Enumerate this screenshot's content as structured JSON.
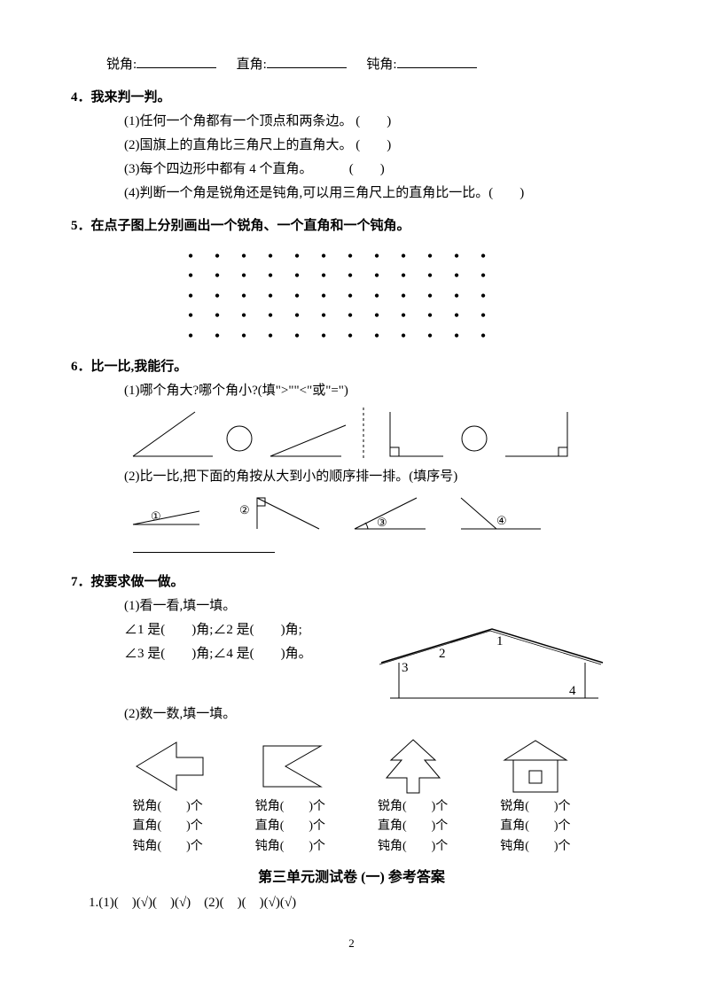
{
  "top": {
    "acute": "锐角:",
    "right": "直角:",
    "obtuse": "钝角:"
  },
  "q4": {
    "title": "4．我来判一判。",
    "items": [
      "(1)任何一个角都有一个顶点和两条边。  (　　)",
      "(2)国旗上的直角比三角尺上的直角大。  (　　)",
      "(3)每个四边形中都有 4 个直角。　　　  (　　)",
      "(4)判断一个角是锐角还是钝角,可以用三角尺上的直角比一比。(　　)"
    ]
  },
  "q5": {
    "title": "5．在点子图上分别画出一个锐角、一个直角和一个钝角。",
    "rows": 5,
    "cols": 12
  },
  "q6": {
    "title": "6．比一比,我能行。",
    "s1": "(1)哪个角大?哪个角小?(填\">\"\"<\"或\"=\")",
    "s2": "(2)比一比,把下面的角按从大到小的顺序排一排。(填序号)",
    "labels": {
      "n1": "①",
      "n2": "②",
      "n3": "③",
      "n4": "④"
    }
  },
  "q7": {
    "title": "7．按要求做一做。",
    "s1": "(1)看一看,填一填。",
    "line1a": "∠1 是(　　)角;∠2 是(　　)角;",
    "line1b": "∠3 是(　　)角;∠4 是(　　)角。",
    "s2": "(2)数一数,填一填。",
    "house_labels": {
      "l1": "1",
      "l2": "2",
      "l3": "3",
      "l4": "4"
    },
    "count_labels": {
      "acute": "锐角(　　)个",
      "right": "直角(　　)个",
      "obtuse": "钝角(　　)个"
    }
  },
  "answers": {
    "title": "第三单元测试卷  (一)  参考答案",
    "line1": "1.(1)(　)(√)(　)(√)　(2)(　)(　)(√)(√)"
  },
  "page": "2",
  "colors": {
    "line": "#000000",
    "bg": "#ffffff"
  }
}
